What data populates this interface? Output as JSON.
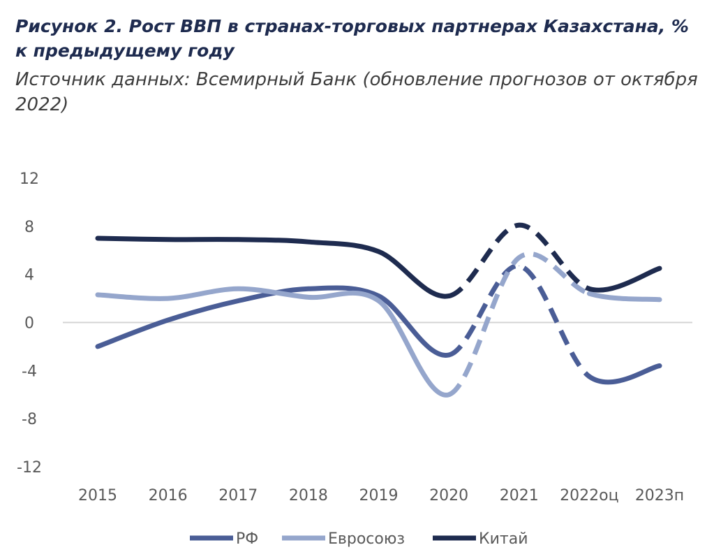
{
  "title": "Рисунок 2. Рост ВВП в странах-торговых партнерах Казахстана, % к предыдущему году",
  "subtitle": "Источник данных: Всемирный Банк (обновление прогнозов от октября 2022)",
  "chart_data": {
    "type": "line",
    "title": "Рисунок 2. Рост ВВП в странах-торговых партнерах Казахстана, % к предыдущему году",
    "subtitle": "Источник данных: Всемирный Банк (обновление прогнозов от октября 2022)",
    "categories": [
      "2015",
      "2016",
      "2017",
      "2018",
      "2019",
      "2020",
      "2021",
      "2022оц",
      "2023п"
    ],
    "yticks": [
      "12",
      "8",
      "4",
      "0",
      "-4",
      "-8",
      "-12"
    ],
    "ylim": [
      -12,
      12
    ],
    "grid": false,
    "legend_position": "bottom",
    "dashed_segment_between": [
      "2020",
      "2022оц"
    ],
    "series": [
      {
        "name": "РФ",
        "color": "#4a5d96",
        "values": [
          -2.0,
          0.2,
          1.8,
          2.8,
          2.2,
          -2.7,
          4.7,
          -4.5,
          -3.6
        ]
      },
      {
        "name": "Евросоюз",
        "color": "#95a6cc",
        "values": [
          2.3,
          2.0,
          2.8,
          2.1,
          1.8,
          -6.0,
          5.4,
          2.4,
          1.9
        ]
      },
      {
        "name": "Китай",
        "color": "#1e2b4f",
        "values": [
          7.0,
          6.9,
          6.9,
          6.7,
          5.9,
          2.2,
          8.1,
          2.8,
          4.5
        ]
      }
    ]
  }
}
